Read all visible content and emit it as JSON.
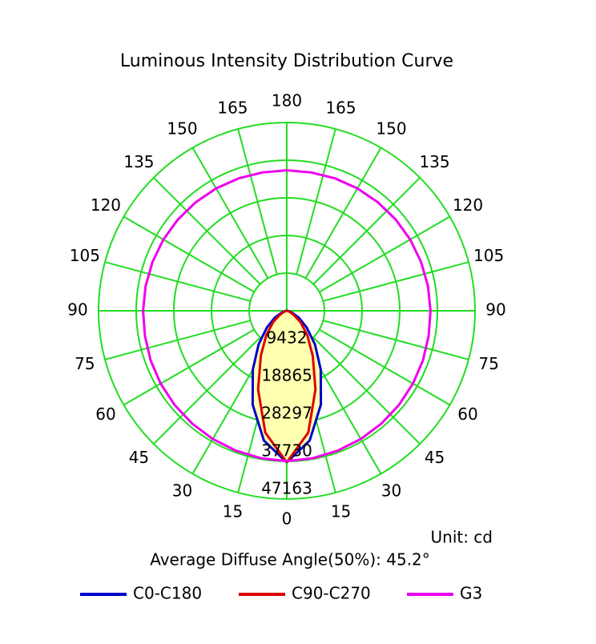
{
  "chart_data": {
    "type": "polar",
    "title": "Luminous Intensity Distribution Curve",
    "unit_label": "Unit: cd",
    "note": "Average Diffuse Angle(50%): 45.2°",
    "angles": [
      0,
      10,
      20,
      30,
      40,
      50,
      60,
      70,
      80,
      90,
      100,
      110,
      120,
      130,
      140,
      150,
      160,
      170,
      180
    ],
    "series": [
      {
        "name": "C0-C180",
        "color": "#0000cc",
        "values": [
          38000,
          33000,
          25000,
          17000,
          11000,
          6500,
          3500,
          1500,
          500,
          0,
          0,
          0,
          0,
          0,
          0,
          0,
          0,
          0,
          0
        ]
      },
      {
        "name": "C90-C270",
        "color": "#dd0000",
        "values": [
          38000,
          31000,
          21000,
          13000,
          8000,
          4500,
          2000,
          800,
          200,
          0,
          0,
          0,
          0,
          0,
          0,
          0,
          0,
          0,
          0
        ]
      },
      {
        "name": "G3",
        "color": "#ee00ee",
        "values": [
          37700,
          37500,
          37300,
          37100,
          36900,
          36700,
          36500,
          36300,
          36100,
          36000,
          35900,
          35800,
          35700,
          35600,
          35500,
          35400,
          35300,
          35200,
          35200
        ]
      }
    ],
    "rlim": [
      0,
      47163
    ],
    "rticks": [
      9432,
      18865,
      28297,
      37730,
      47163
    ],
    "angle_ticks": [
      0,
      15,
      30,
      45,
      60,
      75,
      90,
      105,
      120,
      135,
      150,
      165,
      180
    ],
    "grid_color": "#22dd22",
    "fill_color": "#ffffb0"
  }
}
